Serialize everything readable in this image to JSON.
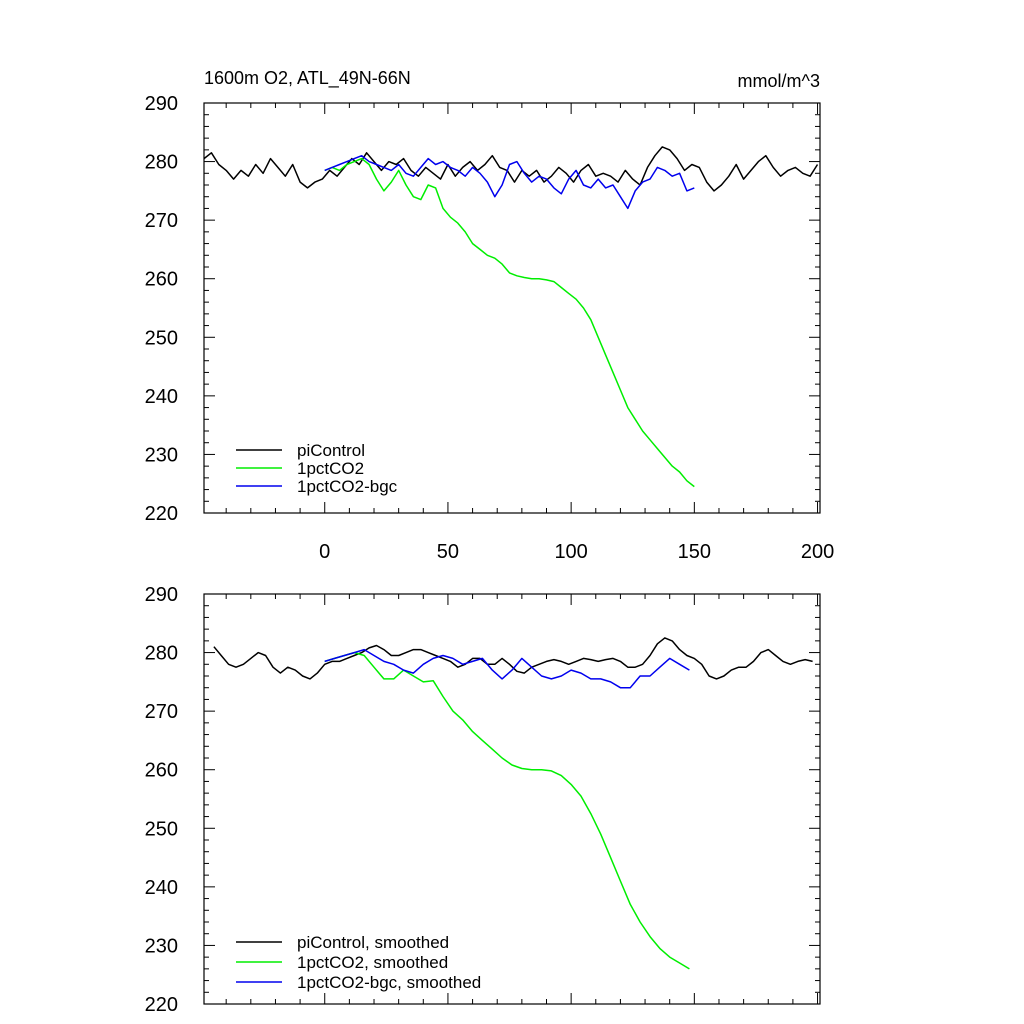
{
  "chart_data": [
    {
      "type": "line",
      "title": "1600m O2, ATL_49N-66N",
      "units": "mmol/m^3",
      "xlim": [
        -49,
        201
      ],
      "ylim": [
        220,
        290
      ],
      "xticks": [
        0,
        50,
        100,
        150,
        200
      ],
      "xtick_labels": [
        "0",
        "50",
        "100",
        "150",
        "200"
      ],
      "yticks": [
        220,
        230,
        240,
        250,
        260,
        270,
        280,
        290
      ],
      "ytick_labels": [
        "220",
        "230",
        "240",
        "250",
        "260",
        "270",
        "280",
        "290"
      ],
      "legend_position": "bottom-left",
      "series": [
        {
          "name": "piControl",
          "color": "#000000",
          "x": [
            -49,
            -46,
            -43,
            -40,
            -37,
            -34,
            -31,
            -28,
            -25,
            -22,
            -19,
            -16,
            -13,
            -10,
            -7,
            -4,
            -1,
            2,
            5,
            8,
            11,
            14,
            17,
            20,
            23,
            26,
            29,
            32,
            35,
            38,
            41,
            44,
            47,
            50,
            53,
            56,
            59,
            62,
            65,
            68,
            71,
            74,
            77,
            80,
            83,
            86,
            89,
            92,
            95,
            98,
            101,
            104,
            107,
            110,
            113,
            116,
            119,
            122,
            125,
            128,
            131,
            134,
            137,
            140,
            143,
            146,
            149,
            152,
            155,
            158,
            161,
            164,
            167,
            170,
            173,
            176,
            179,
            182,
            185,
            188,
            191,
            194,
            197,
            200
          ],
          "y": [
            280.5,
            281.5,
            279.5,
            278.5,
            277.0,
            278.5,
            277.5,
            279.5,
            278.0,
            280.5,
            279.0,
            277.5,
            279.5,
            276.5,
            275.5,
            276.5,
            277.0,
            278.5,
            277.5,
            279.0,
            280.5,
            279.5,
            281.5,
            280.0,
            278.5,
            280.0,
            279.5,
            280.5,
            278.5,
            277.5,
            279.0,
            278.0,
            277.0,
            279.5,
            277.5,
            279.0,
            280.0,
            278.5,
            279.5,
            281.0,
            279.0,
            278.5,
            276.5,
            278.5,
            277.5,
            278.5,
            276.5,
            277.5,
            279.0,
            278.0,
            276.5,
            278.5,
            279.5,
            277.5,
            278.0,
            277.5,
            276.5,
            278.5,
            277.0,
            276.0,
            279.0,
            281.0,
            282.5,
            282.0,
            280.5,
            278.5,
            279.5,
            279.0,
            276.5,
            275.0,
            276.0,
            277.5,
            279.5,
            277.0,
            278.5,
            280.0,
            281.0,
            279.0,
            277.5,
            278.5,
            279.0,
            278.0,
            277.5,
            279.5
          ]
        },
        {
          "name": "1pctCO2",
          "color": "#00ee00",
          "x": [
            0,
            3,
            6,
            9,
            12,
            15,
            18,
            21,
            24,
            27,
            30,
            33,
            36,
            39,
            42,
            45,
            48,
            51,
            54,
            57,
            60,
            63,
            66,
            69,
            72,
            75,
            78,
            81,
            84,
            87,
            90,
            93,
            96,
            99,
            102,
            105,
            108,
            111,
            114,
            117,
            120,
            123,
            126,
            129,
            132,
            135,
            138,
            141,
            144,
            147,
            150
          ],
          "y": [
            278.5,
            279.0,
            278.5,
            279.5,
            280.0,
            280.5,
            279.5,
            277.0,
            275.0,
            276.5,
            278.5,
            276.0,
            274.0,
            273.5,
            276.0,
            275.5,
            272.0,
            270.5,
            269.5,
            268.0,
            266.0,
            265.0,
            264.0,
            263.5,
            262.5,
            261.0,
            260.5,
            260.2,
            260.0,
            260.0,
            259.8,
            259.5,
            258.5,
            257.5,
            256.5,
            255.0,
            253.0,
            250.0,
            247.0,
            244.0,
            241.0,
            238.0,
            236.0,
            234.0,
            232.5,
            231.0,
            229.5,
            228.0,
            227.0,
            225.5,
            224.5
          ]
        },
        {
          "name": "1pctCO2-bgc",
          "color": "#0000ee",
          "x": [
            0,
            3,
            6,
            9,
            12,
            15,
            18,
            21,
            24,
            27,
            30,
            33,
            36,
            39,
            42,
            45,
            48,
            51,
            54,
            57,
            60,
            63,
            66,
            69,
            72,
            75,
            78,
            81,
            84,
            87,
            90,
            93,
            96,
            99,
            102,
            105,
            108,
            111,
            114,
            117,
            120,
            123,
            126,
            129,
            132,
            135,
            138,
            141,
            144,
            147,
            150
          ],
          "y": [
            278.5,
            279.0,
            279.5,
            280.0,
            280.5,
            281.0,
            280.0,
            279.5,
            279.0,
            278.5,
            279.5,
            278.0,
            277.5,
            279.0,
            280.5,
            279.5,
            280.0,
            279.0,
            278.5,
            277.5,
            279.0,
            278.0,
            276.5,
            274.0,
            276.0,
            279.5,
            280.0,
            278.0,
            276.5,
            277.5,
            277.0,
            275.5,
            274.5,
            277.0,
            278.5,
            276.0,
            275.5,
            277.0,
            275.5,
            276.0,
            274.0,
            272.0,
            275.0,
            276.5,
            277.0,
            279.0,
            278.5,
            277.5,
            278.0,
            275.0,
            275.5
          ]
        }
      ]
    },
    {
      "type": "line",
      "title": "",
      "xlim": [
        -49,
        201
      ],
      "ylim": [
        220,
        290
      ],
      "xticks": [
        0,
        50,
        100,
        150,
        200
      ],
      "yticks": [
        220,
        230,
        240,
        250,
        260,
        270,
        280,
        290
      ],
      "ytick_labels": [
        "220",
        "230",
        "240",
        "250",
        "260",
        "270",
        "280",
        "290"
      ],
      "legend_position": "bottom-left",
      "series": [
        {
          "name": "piControl, smoothed",
          "color": "#000000",
          "x": [
            -45,
            -42,
            -39,
            -36,
            -33,
            -30,
            -27,
            -24,
            -21,
            -18,
            -15,
            -12,
            -9,
            -6,
            -3,
            0,
            3,
            6,
            9,
            12,
            15,
            18,
            21,
            24,
            27,
            30,
            33,
            36,
            39,
            42,
            45,
            48,
            51,
            54,
            57,
            60,
            63,
            66,
            69,
            72,
            75,
            78,
            81,
            84,
            87,
            90,
            93,
            96,
            99,
            102,
            105,
            108,
            111,
            114,
            117,
            120,
            123,
            126,
            129,
            132,
            135,
            138,
            141,
            144,
            147,
            150,
            153,
            156,
            159,
            162,
            165,
            168,
            171,
            174,
            177,
            180,
            183,
            186,
            189,
            192,
            195,
            198
          ],
          "y": [
            281.0,
            279.5,
            278.0,
            277.5,
            278.0,
            279.0,
            280.0,
            279.5,
            277.5,
            276.5,
            277.5,
            277.0,
            276.0,
            275.5,
            276.5,
            278.0,
            278.5,
            278.5,
            279.0,
            279.5,
            280.0,
            280.8,
            281.2,
            280.5,
            279.5,
            279.5,
            280.0,
            280.5,
            280.5,
            280.0,
            279.5,
            279.0,
            278.5,
            277.5,
            278.0,
            279.0,
            279.0,
            278.0,
            278.0,
            279.0,
            278.0,
            276.8,
            276.5,
            277.5,
            278.0,
            278.5,
            278.8,
            278.5,
            278.0,
            278.5,
            279.0,
            278.8,
            278.5,
            278.8,
            279.0,
            278.5,
            277.5,
            277.5,
            278.0,
            279.5,
            281.5,
            282.5,
            282.0,
            280.5,
            279.5,
            279.0,
            278.0,
            276.0,
            275.5,
            276.0,
            277.0,
            277.5,
            277.5,
            278.5,
            280.0,
            280.5,
            279.5,
            278.5,
            278.0,
            278.5,
            278.8,
            278.5
          ]
        },
        {
          "name": "1pctCO2, smoothed",
          "color": "#00ee00",
          "x": [
            0,
            4,
            8,
            12,
            16,
            20,
            24,
            28,
            32,
            36,
            40,
            44,
            48,
            52,
            56,
            60,
            64,
            68,
            72,
            76,
            80,
            84,
            88,
            92,
            96,
            100,
            104,
            108,
            112,
            116,
            120,
            124,
            128,
            132,
            136,
            140,
            144,
            148
          ],
          "y": [
            278.5,
            279.0,
            279.5,
            280.0,
            279.5,
            277.5,
            275.5,
            275.5,
            277.0,
            276.0,
            275.0,
            275.2,
            272.5,
            270.0,
            268.5,
            266.5,
            265.0,
            263.5,
            262.0,
            260.8,
            260.2,
            260.0,
            260.0,
            259.8,
            259.0,
            257.5,
            255.5,
            252.5,
            249.0,
            245.0,
            241.0,
            237.0,
            234.0,
            231.5,
            229.5,
            228.0,
            227.0,
            226.0
          ]
        },
        {
          "name": "1pctCO2-bgc, smoothed",
          "color": "#0000ee",
          "x": [
            0,
            4,
            8,
            12,
            16,
            20,
            24,
            28,
            32,
            36,
            40,
            44,
            48,
            52,
            56,
            60,
            64,
            68,
            72,
            76,
            80,
            84,
            88,
            92,
            96,
            100,
            104,
            108,
            112,
            116,
            120,
            124,
            128,
            132,
            136,
            140,
            144,
            148
          ],
          "y": [
            278.5,
            279.0,
            279.5,
            280.0,
            280.5,
            279.5,
            278.5,
            278.0,
            277.0,
            276.5,
            278.0,
            279.0,
            279.5,
            279.0,
            278.0,
            278.5,
            279.0,
            277.0,
            275.5,
            277.0,
            279.0,
            277.5,
            276.0,
            275.5,
            276.0,
            277.0,
            276.5,
            275.5,
            275.5,
            275.0,
            274.0,
            274.0,
            276.0,
            276.0,
            277.5,
            279.0,
            278.0,
            277.0
          ]
        }
      ]
    }
  ]
}
